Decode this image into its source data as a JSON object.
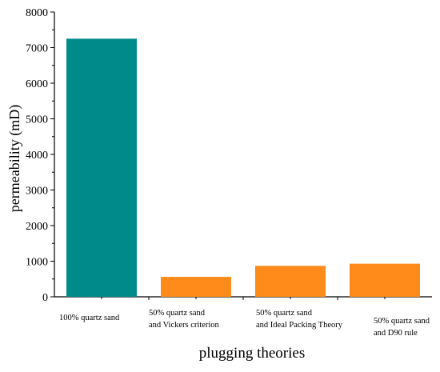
{
  "chart_data": {
    "type": "bar",
    "categories": [
      [
        "100% quartz sand"
      ],
      [
        "50% quartz sand",
        "and Vickers criterion"
      ],
      [
        "50% quartz sand",
        "and Ideal Packing Theory"
      ],
      [
        "50% quartz sand",
        "and D90 rule"
      ]
    ],
    "values": [
      7250,
      560,
      870,
      930
    ],
    "bar_colors": [
      "#008B8B",
      "#FF8C1A",
      "#FF8C1A",
      "#FF8C1A"
    ],
    "title": "",
    "xlabel": "plugging theories",
    "ylabel": "permeability (mD)",
    "ylim": [
      0,
      8000
    ],
    "yticks": [
      0,
      1000,
      2000,
      3000,
      4000,
      5000,
      6000,
      7000,
      8000
    ],
    "grid": false,
    "legend": "none"
  }
}
